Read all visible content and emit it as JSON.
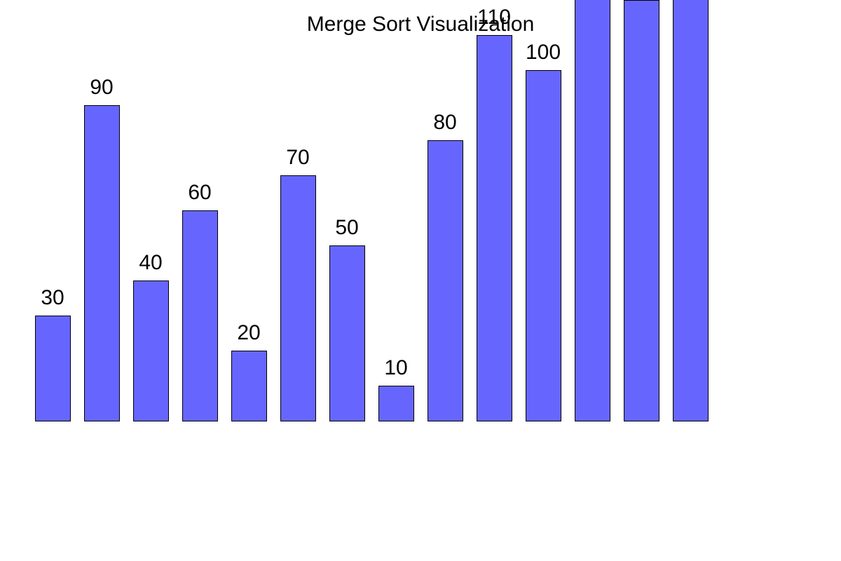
{
  "chart_data": {
    "type": "bar",
    "title": "Merge Sort Visualization",
    "values": [
      30,
      90,
      40,
      60,
      20,
      70,
      50,
      10,
      80,
      110,
      100,
      130,
      120,
      140
    ],
    "labels": [
      "30",
      "90",
      "40",
      "60",
      "20",
      "70",
      "50",
      "10",
      "80",
      "110",
      "100",
      "",
      "",
      ""
    ],
    "xlabel": "",
    "ylabel": "",
    "grid": false,
    "legend": "none"
  },
  "colors": {
    "bar_fill": "#6666ff",
    "bar_stroke": "#000000",
    "text": "#000000",
    "background": "#ffffff"
  }
}
